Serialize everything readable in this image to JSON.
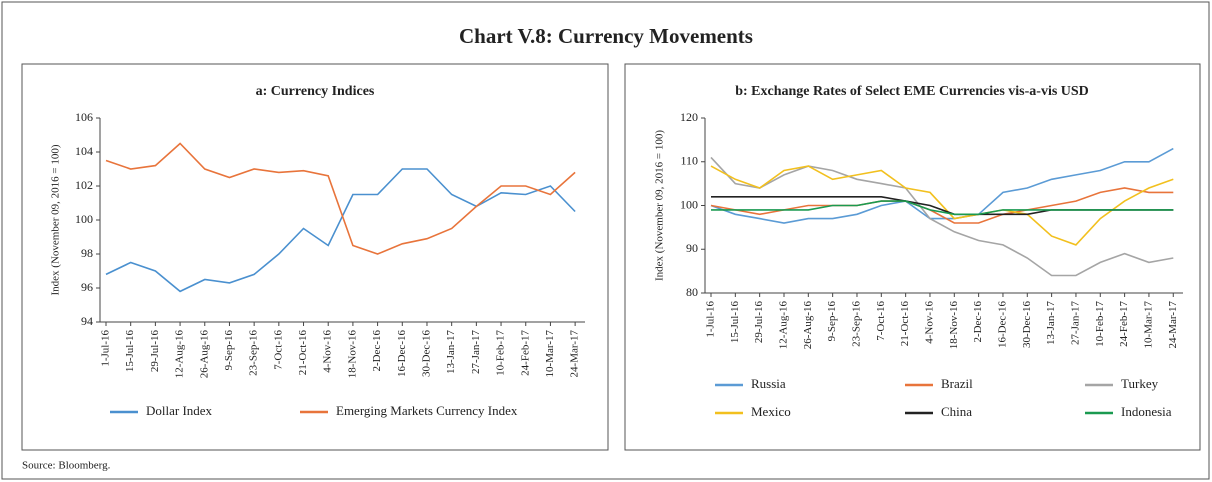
{
  "title": "Chart V.8: Currency Movements",
  "source": "Source: Bloomberg.",
  "chart_data": [
    {
      "type": "line",
      "title": "a: Currency Indices",
      "ylabel": "Index (November 09, 2016 = 100)",
      "categories": [
        "1-Jul-16",
        "15-Jul-16",
        "29-Jul-16",
        "12-Aug-16",
        "26-Aug-16",
        "9-Sep-16",
        "23-Sep-16",
        "7-Oct-16",
        "21-Oct-16",
        "4-Nov-16",
        "18-Nov-16",
        "2-Dec-16",
        "16-Dec-16",
        "30-Dec-16",
        "13-Jan-17",
        "27-Jan-17",
        "10-Feb-17",
        "24-Feb-17",
        "10-Mar-17",
        "24-Mar-17"
      ],
      "ylim": [
        94,
        106
      ],
      "yticks": [
        94,
        96,
        98,
        100,
        102,
        104,
        106
      ],
      "legend": "bottom",
      "series": [
        {
          "name": "Dollar Index",
          "color": "#4a90cf",
          "values": [
            96.8,
            97.5,
            97,
            95.8,
            96.5,
            96.3,
            96.8,
            98,
            99.5,
            98.5,
            101.5,
            101.5,
            103,
            103,
            101.5,
            100.8,
            101.6,
            101.5,
            102,
            100.5
          ]
        },
        {
          "name": "Emerging Markets Currency Index",
          "color": "#e8743b",
          "values": [
            103.5,
            103,
            103.2,
            104.5,
            103,
            102.5,
            103,
            102.8,
            102.9,
            102.6,
            98.5,
            98,
            98.6,
            98.9,
            99.5,
            100.8,
            102,
            102,
            101.5,
            102.8
          ]
        }
      ]
    },
    {
      "type": "line",
      "title": "b: Exchange Rates of Select EME Currencies vis-a-vis USD",
      "ylabel": "Index (November 09, 2016 = 100)",
      "categories": [
        "1-Jul-16",
        "15-Jul-16",
        "29-Jul-16",
        "12-Aug-16",
        "26-Aug-16",
        "9-Sep-16",
        "23-Sep-16",
        "7-Oct-16",
        "21-Oct-16",
        "4-Nov-16",
        "18-Nov-16",
        "2-Dec-16",
        "16-Dec-16",
        "30-Dec-16",
        "13-Jan-17",
        "27-Jan-17",
        "10-Feb-17",
        "24-Feb-17",
        "10-Mar-17",
        "24-Mar-17"
      ],
      "ylim": [
        80,
        120
      ],
      "yticks": [
        80,
        90,
        100,
        110,
        120
      ],
      "legend": "bottom",
      "series": [
        {
          "name": "Russia",
          "color": "#5b9bd5",
          "values": [
            100,
            98,
            97,
            96,
            97,
            97,
            98,
            100,
            101,
            97,
            97,
            98,
            103,
            104,
            106,
            107,
            108,
            110,
            110,
            113
          ]
        },
        {
          "name": "Brazil",
          "color": "#e8743b",
          "values": [
            100,
            99,
            98,
            99,
            100,
            100,
            100,
            101,
            101,
            99,
            96,
            96,
            98,
            99,
            100,
            101,
            103,
            104,
            103,
            103
          ]
        },
        {
          "name": "Turkey",
          "color": "#a5a5a5",
          "values": [
            111,
            105,
            104,
            107,
            109,
            108,
            106,
            105,
            104,
            97,
            94,
            92,
            91,
            88,
            84,
            84,
            87,
            89,
            87,
            88
          ]
        },
        {
          "name": "Mexico",
          "color": "#f2c01e",
          "values": [
            109,
            106,
            104,
            108,
            109,
            106,
            107,
            108,
            104,
            103,
            97,
            98,
            99,
            98,
            93,
            91,
            97,
            101,
            104,
            106
          ]
        },
        {
          "name": "China",
          "color": "#222222",
          "values": [
            102,
            102,
            102,
            102,
            102,
            102,
            102,
            102,
            101,
            100,
            98,
            98,
            98,
            98,
            99,
            99,
            99,
            99,
            99,
            99
          ]
        },
        {
          "name": "Indonesia",
          "color": "#1a9a50",
          "values": [
            99,
            99,
            99,
            99,
            99,
            100,
            100,
            101,
            101,
            99,
            98,
            98,
            99,
            99,
            99,
            99,
            99,
            99,
            99,
            99
          ]
        }
      ]
    }
  ]
}
